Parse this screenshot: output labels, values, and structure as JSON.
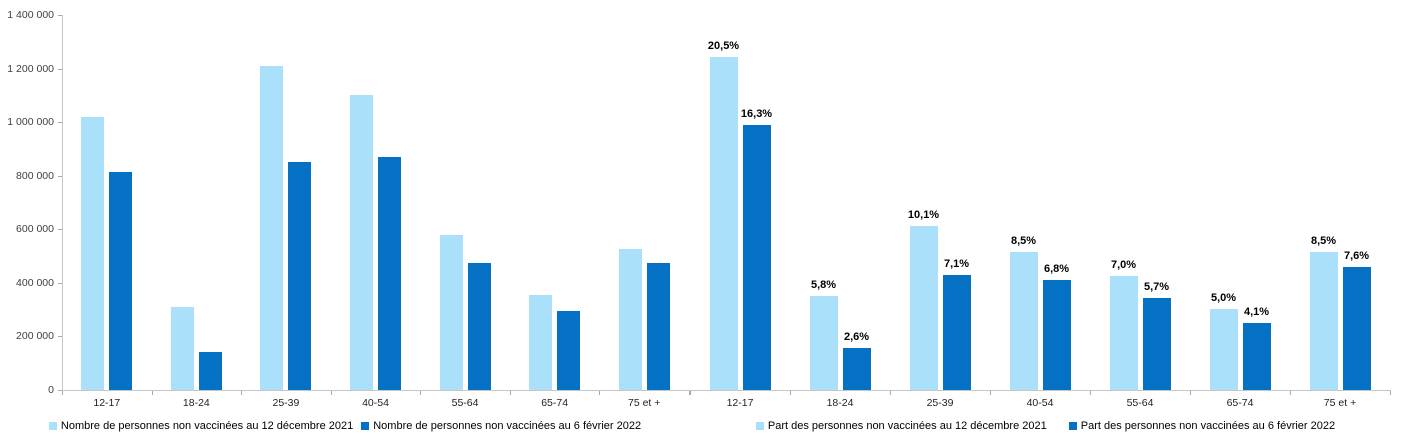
{
  "colors": {
    "series_dec_2021": "#ABE0FA",
    "series_feb_2022": "#0571C5",
    "axis_line": "#c6c6c6",
    "tick_mark": "#a9a9a9",
    "axis_text": "#3f3f3f",
    "category_text": "#1f1f1f",
    "value_label_text": "#000000"
  },
  "chart_data": [
    {
      "type": "bar",
      "title": "",
      "categories": [
        "12-17",
        "18-24",
        "25-39",
        "40-54",
        "55-64",
        "65-74",
        "75 et +"
      ],
      "series": [
        {
          "name": "Nombre de personnes non vaccinées au 12 décembre 2021",
          "color": "#ABE0FA",
          "values": [
            1020000,
            310000,
            1210000,
            1100000,
            580000,
            355000,
            525000
          ]
        },
        {
          "name": "Nombre de personnes non vaccinées au 6 février 2022",
          "color": "#0571C5",
          "values": [
            815000,
            140000,
            850000,
            870000,
            475000,
            295000,
            475000
          ]
        }
      ],
      "y_axis": {
        "min": 0,
        "max": 1400000,
        "step": 200000,
        "tick_labels": [
          "1 400 000",
          "1 200 000",
          "1 000 000",
          "800 000",
          "600 000",
          "400 000",
          "200 000",
          "0"
        ]
      },
      "grid": false,
      "legend_position": "bottom",
      "data_labels_visible": false
    },
    {
      "type": "bar",
      "title": "",
      "categories": [
        "12-17",
        "18-24",
        "25-39",
        "40-54",
        "55-64",
        "65-74",
        "75 et +"
      ],
      "series": [
        {
          "name": "Part des personnes non vaccinées au 12 décembre 2021",
          "color": "#ABE0FA",
          "values": [
            20.5,
            5.8,
            10.1,
            8.5,
            7.0,
            5.0,
            8.5
          ],
          "value_labels": [
            "20,5%",
            "5,8%",
            "10,1%",
            "8,5%",
            "7,0%",
            "5,0%",
            "8,5%"
          ]
        },
        {
          "name": "Part des personnes non vaccinées au 6 février 2022",
          "color": "#0571C5",
          "values": [
            16.3,
            2.6,
            7.1,
            6.8,
            5.7,
            4.1,
            7.6
          ],
          "value_labels": [
            "16,3%",
            "2,6%",
            "7,1%",
            "6,8%",
            "5,7%",
            "4,1%",
            "7,6%"
          ]
        }
      ],
      "y_axis": {
        "min": 0,
        "ylim": [
          0,
          22
        ],
        "tick_labels_visible": false
      },
      "grid": false,
      "legend_position": "bottom",
      "data_labels_visible": true
    }
  ]
}
